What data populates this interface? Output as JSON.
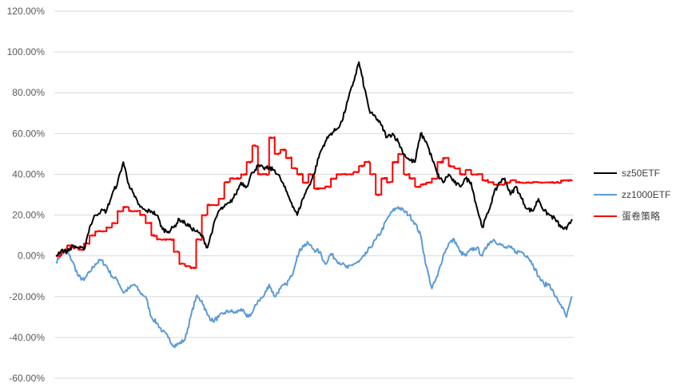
{
  "chart_data": {
    "type": "line",
    "title": "",
    "xlabel": "",
    "ylabel": "",
    "ylim": [
      -60,
      120
    ],
    "y_ticks": [
      {
        "value": 120,
        "label": "120.00%"
      },
      {
        "value": 100,
        "label": "100.00%"
      },
      {
        "value": 80,
        "label": "80.00%"
      },
      {
        "value": 60,
        "label": "60.00%"
      },
      {
        "value": 40,
        "label": "40.00%"
      },
      {
        "value": 20,
        "label": "20.00%"
      },
      {
        "value": 0,
        "label": "0.00%"
      },
      {
        "value": -20,
        "label": "-20.00%"
      },
      {
        "value": -40,
        "label": "-40.00%"
      },
      {
        "value": -60,
        "label": "-60.00%"
      }
    ],
    "grid": true,
    "legend": "right",
    "series": [
      {
        "name": "sz50ETF",
        "color": "#000000",
        "values": [
          0,
          3,
          2,
          5,
          4,
          3,
          14,
          20,
          22,
          22,
          30,
          36,
          46,
          35,
          29,
          24,
          22,
          22,
          20,
          13,
          12,
          14,
          18,
          16,
          14,
          12,
          10,
          4,
          14,
          22,
          24,
          26,
          30,
          36,
          34,
          41,
          44,
          43,
          43,
          42,
          38,
          32,
          26,
          20,
          28,
          34,
          40,
          50,
          56,
          60,
          62,
          66,
          76,
          85,
          95,
          82,
          70,
          68,
          64,
          58,
          60,
          56,
          50,
          47,
          46,
          60,
          56,
          48,
          40,
          36,
          40,
          36,
          34,
          38,
          36,
          24,
          14,
          21,
          30,
          36,
          38,
          30,
          34,
          28,
          23,
          22,
          28,
          22,
          20,
          18,
          14,
          13,
          18
        ]
      },
      {
        "name": "zz1000ETF",
        "color": "#5b9bd5",
        "values": [
          -3,
          1,
          2,
          -3,
          -10,
          -12,
          -8,
          -4,
          -2,
          -5,
          -10,
          -12,
          -18,
          -16,
          -14,
          -18,
          -20,
          -30,
          -33,
          -37,
          -40,
          -44,
          -43,
          -41,
          -30,
          -20,
          -22,
          -29,
          -32,
          -30,
          -28,
          -27,
          -28,
          -26,
          -30,
          -28,
          -22,
          -20,
          -14,
          -20,
          -16,
          -14,
          -10,
          0,
          5,
          6,
          3,
          2,
          -4,
          1,
          -2,
          -4,
          -6,
          -4,
          -3,
          0,
          4,
          8,
          12,
          18,
          22,
          24,
          22,
          20,
          16,
          10,
          -5,
          -16,
          -10,
          0,
          6,
          8,
          2,
          0,
          3,
          4,
          0,
          6,
          8,
          6,
          4,
          4,
          2,
          2,
          0,
          -4,
          -10,
          -14,
          -14,
          -20,
          -24,
          -30,
          -20
        ]
      },
      {
        "name": "蛋卷策略",
        "color": "#ff0000",
        "values": [
          0,
          2,
          5,
          4,
          3,
          6,
          10,
          12,
          12,
          14,
          16,
          22,
          24,
          22,
          22,
          20,
          16,
          10,
          8,
          8,
          8,
          2,
          -4,
          -5,
          -6,
          8,
          20,
          25,
          25,
          28,
          36,
          38,
          38,
          40,
          46,
          54,
          40,
          40,
          58,
          50,
          52,
          48,
          43,
          40,
          36,
          40,
          33,
          33,
          34,
          38,
          40,
          40,
          40,
          41,
          44,
          46,
          40,
          30,
          38,
          36,
          46,
          50,
          40,
          38,
          34,
          35,
          36,
          38,
          46,
          48,
          44,
          43,
          40,
          42,
          40,
          40,
          37,
          36,
          35,
          35,
          36,
          37,
          36,
          36,
          36,
          36,
          36,
          36,
          36,
          36,
          37,
          37,
          37
        ]
      }
    ]
  }
}
